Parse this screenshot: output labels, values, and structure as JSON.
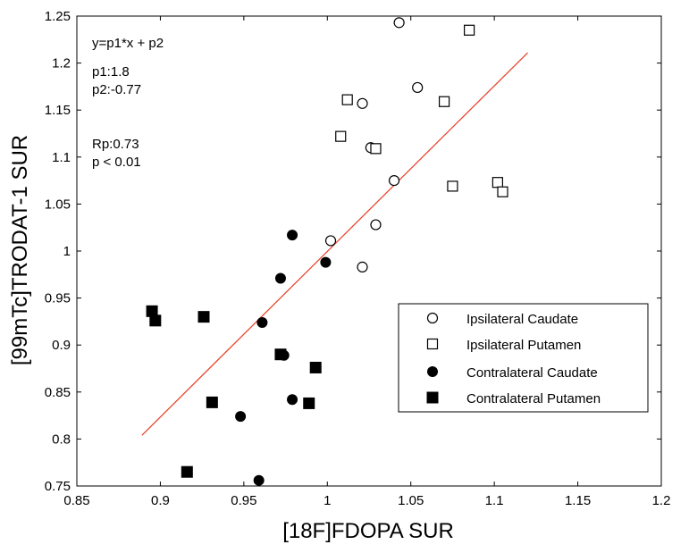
{
  "chart_data": {
    "type": "scatter",
    "xlabel": "[18F]FDOPA SUR",
    "ylabel": "[99mTc]TRODAT-1 SUR",
    "xlim": [
      0.85,
      1.2
    ],
    "ylim": [
      0.75,
      1.25
    ],
    "xticks": [
      "0.85",
      "0.9",
      "0.95",
      "1",
      "1.05",
      "1.1",
      "1.15",
      "1.2"
    ],
    "yticks": [
      "0.75",
      "0.8",
      "0.85",
      "0.9",
      "0.95",
      "1",
      "1.05",
      "1.1",
      "1.15",
      "1.2",
      "1.25"
    ],
    "grid": false,
    "legend_position": "lower-right",
    "annotations": [
      "y=p1*x + p2",
      "p1:1.8",
      "p2:-0.77",
      "Rp:0.73",
      "p < 0.01"
    ],
    "fit_line": {
      "x": [
        0.889,
        1.12
      ],
      "y": [
        0.804,
        1.211
      ],
      "color": "#e8452c"
    },
    "series": [
      {
        "name": "Ipsilateral Caudate",
        "marker": "circle-open",
        "points": [
          [
            1.043,
            1.243
          ],
          [
            1.054,
            1.174
          ],
          [
            1.021,
            1.157
          ],
          [
            1.026,
            1.11
          ],
          [
            1.04,
            1.075
          ],
          [
            1.029,
            1.028
          ],
          [
            1.002,
            1.011
          ],
          [
            1.021,
            0.983
          ]
        ]
      },
      {
        "name": "Ipsilateral Putamen",
        "marker": "square-open",
        "points": [
          [
            1.085,
            1.235
          ],
          [
            1.012,
            1.161
          ],
          [
            1.07,
            1.159
          ],
          [
            1.008,
            1.122
          ],
          [
            1.029,
            1.109
          ],
          [
            1.075,
            1.069
          ],
          [
            1.102,
            1.073
          ],
          [
            1.105,
            1.063
          ]
        ]
      },
      {
        "name": "Contralateral Caudate",
        "marker": "circle-filled",
        "points": [
          [
            0.979,
            1.017
          ],
          [
            0.999,
            0.988
          ],
          [
            0.972,
            0.971
          ],
          [
            0.961,
            0.924
          ],
          [
            0.974,
            0.889
          ],
          [
            0.979,
            0.842
          ],
          [
            0.948,
            0.824
          ],
          [
            0.959,
            0.756
          ]
        ]
      },
      {
        "name": "Contralateral Putamen",
        "marker": "square-filled",
        "points": [
          [
            0.895,
            0.936
          ],
          [
            0.897,
            0.926
          ],
          [
            0.926,
            0.93
          ],
          [
            0.972,
            0.89
          ],
          [
            0.993,
            0.876
          ],
          [
            0.931,
            0.839
          ],
          [
            0.989,
            0.838
          ],
          [
            0.916,
            0.765
          ]
        ]
      }
    ]
  }
}
